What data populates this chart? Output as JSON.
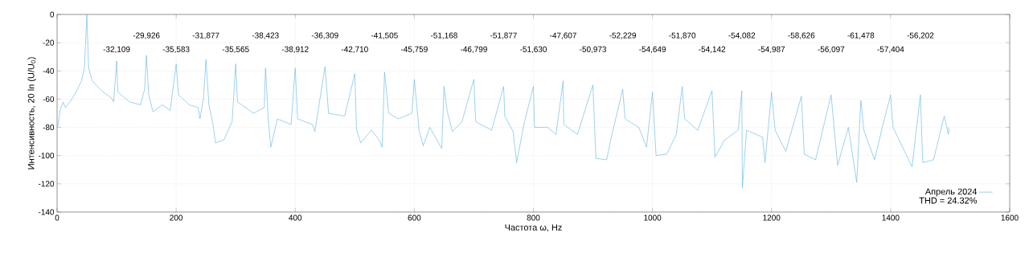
{
  "chart_data": {
    "type": "line",
    "xlabel": "Частота ω, Hz",
    "ylabel": "Интенсивность, 20 ln (U/U$_{0}$)",
    "xlim": [
      0,
      1600
    ],
    "xticks": [
      0,
      200,
      400,
      600,
      800,
      1000,
      1200,
      1400,
      1600
    ],
    "ylim": [
      -140,
      0
    ],
    "yticks": [
      -140,
      -120,
      -100,
      -80,
      -60,
      -40,
      -20,
      0
    ],
    "grid": true,
    "legend": "bottom right",
    "marker": "none",
    "line_style": "solid",
    "series": [
      {
        "name": "Апрель 2024",
        "color": "#5ab4e5",
        "x": [
          1,
          5,
          10,
          14,
          23,
          32,
          41,
          46,
          50,
          53,
          59,
          77,
          91,
          95,
          100,
          102,
          122,
          140,
          147,
          150,
          154,
          161,
          177,
          190,
          200,
          204,
          222,
          237,
          240,
          246,
          250,
          255,
          262,
          266,
          280,
          294,
          300,
          303,
          330,
          348,
          350,
          355,
          359,
          370,
          393,
          400,
          404,
          429,
          433,
          450,
          456,
          483,
          500,
          503,
          510,
          528,
          541,
          546,
          550,
          557,
          573,
          596,
          600,
          608,
          615,
          626,
          646,
          650,
          655,
          664,
          680,
          700,
          703,
          730,
          750,
          752,
          766,
          772,
          784,
          800,
          802,
          824,
          838,
          850,
          851,
          874,
          900,
          903,
          905,
          923,
          932,
          950,
          954,
          977,
          990,
          1000,
          1006,
          1024,
          1040,
          1050,
          1054,
          1076,
          1100,
          1105,
          1121,
          1144,
          1150,
          1151,
          1158,
          1185,
          1189,
          1200,
          1206,
          1224,
          1250,
          1255,
          1274,
          1300,
          1311,
          1329,
          1343,
          1350,
          1355,
          1373,
          1386,
          1400,
          1404,
          1436,
          1450,
          1454,
          1472,
          1490,
          1497,
          1498
        ],
        "values": [
          -80,
          -68,
          -62,
          -66,
          -61,
          -55,
          -47,
          -38,
          0,
          -38,
          -47,
          -55,
          -59,
          -62,
          -33,
          -55,
          -62,
          -64,
          -53,
          -29,
          -57,
          -69,
          -64,
          -68,
          -35,
          -57,
          -64,
          -66,
          -74,
          -59,
          -32,
          -64,
          -78,
          -91,
          -89,
          -76,
          -35,
          -62,
          -70,
          -66,
          -38,
          -76,
          -94,
          -74,
          -78,
          -38,
          -74,
          -78,
          -83,
          -37,
          -70,
          -72,
          -42,
          -82,
          -91,
          -82,
          -89,
          -94,
          -41,
          -70,
          -74,
          -70,
          -46,
          -82,
          -93,
          -80,
          -95,
          -51,
          -68,
          -83,
          -76,
          -46,
          -76,
          -82,
          -51,
          -72,
          -83,
          -105,
          -78,
          -51,
          -80,
          -80,
          -85,
          -47,
          -78,
          -85,
          -50,
          -82,
          -102,
          -103,
          -85,
          -53,
          -74,
          -80,
          -94,
          -55,
          -100,
          -99,
          -85,
          -51,
          -74,
          -82,
          -54,
          -101,
          -89,
          -82,
          -54,
          -123,
          -82,
          -87,
          -105,
          -55,
          -82,
          -97,
          -58,
          -99,
          -103,
          -57,
          -107,
          -80,
          -119,
          -61,
          -82,
          -103,
          -80,
          -57,
          -80,
          -108,
          -57,
          -105,
          -103,
          -72,
          -85,
          -80
        ]
      }
    ],
    "annotations": [
      "-32,109",
      "-29,926",
      "-35,583",
      "-31,877",
      "-35,565",
      "-38,423",
      "-38,912",
      "-36,309",
      "-42,710",
      "-41,505",
      "-45,759",
      "-51,168",
      "-46,799",
      "-51,877",
      "-51,630",
      "-47,607",
      "-50,973",
      "-52,229",
      "-54,649",
      "-51,870",
      "-54,142",
      "-54,082",
      "-54,987",
      "-58,626",
      "-56,097",
      "-61,478",
      "-57,404",
      "-56,202",
      "THD = 24.32%"
    ]
  }
}
